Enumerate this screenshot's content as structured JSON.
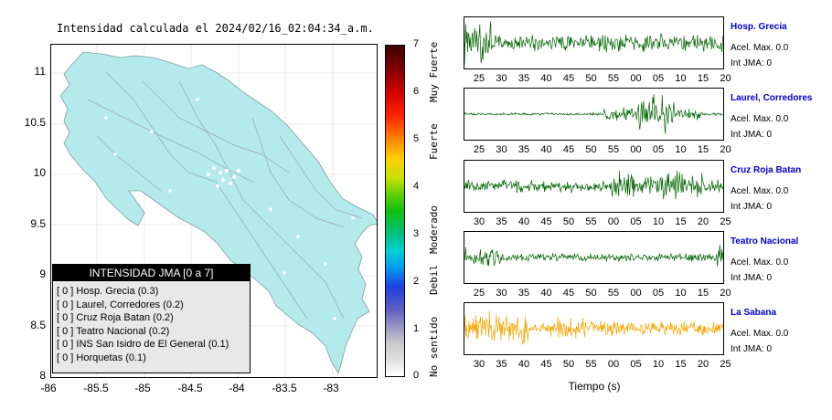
{
  "map": {
    "title": "Intensidad calculada el 2024/02/16_02:04:34_a.m.",
    "yticks": [
      "11",
      "10.5",
      "10",
      "9.5",
      "9",
      "8.5",
      "8"
    ],
    "xticks": [
      "-86",
      "-85.5",
      "-85",
      "-84.5",
      "-84",
      "-83.5",
      "-83"
    ],
    "land_color": "#b4eaec"
  },
  "legend": {
    "title": "INTENSIDAD JMA [0 a 7]",
    "items": [
      "[ 0 ]  Hosp. Grecia (0.3)",
      "[ 0 ]  Laurel, Corredores (0.2)",
      "[ 0 ]  Cruz Roja Batan (0.2)",
      "[ 0 ]  Teatro Nacional (0.2)",
      "[ 0 ]  INS San Isidro de El General (0.1)",
      "[ 0 ]  Horquetas (0.1)"
    ]
  },
  "colorbar": {
    "ticks": [
      "7",
      "6",
      "5",
      "4",
      "3",
      "2",
      "1",
      "0"
    ],
    "labels": [
      "Muy Fuerte",
      "Fuerte",
      "Moderado",
      "Debil",
      "No sentido"
    ]
  },
  "stations": [
    {
      "name": "Hosp. Grecia",
      "acel": "Acel. Max. 0.0",
      "int": "Int JMA: 0",
      "color": "#006400",
      "ticks": [
        "25",
        "30",
        "35",
        "40",
        "45",
        "50",
        "55",
        "00",
        "05",
        "10",
        "15",
        "20"
      ]
    },
    {
      "name": "Laurel, Corredores",
      "acel": "Acel. Max. 0.0",
      "int": "Int JMA: 0",
      "color": "#006400",
      "ticks": [
        "25",
        "30",
        "35",
        "40",
        "45",
        "50",
        "55",
        "00",
        "05",
        "10",
        "15",
        "20"
      ]
    },
    {
      "name": "Cruz Roja Batan",
      "acel": "Acel. Max. 0.0",
      "int": "Int JMA: 0",
      "color": "#006400",
      "ticks": [
        "30",
        "35",
        "40",
        "45",
        "50",
        "55",
        "00",
        "05",
        "10",
        "15",
        "20",
        "25"
      ]
    },
    {
      "name": "Teatro Nacional",
      "acel": "Acel. Max. 0.0",
      "int": "Int JMA: 0",
      "color": "#006400",
      "ticks": [
        "25",
        "30",
        "35",
        "40",
        "45",
        "50",
        "55",
        "00",
        "05",
        "10",
        "15",
        "20"
      ]
    },
    {
      "name": "La Sabana",
      "acel": "Acel. Max. 0.0",
      "int": "Int JMA: 0",
      "color": "#f5a500",
      "ticks": [
        "30",
        "35",
        "40",
        "45",
        "50",
        "55",
        "00",
        "05",
        "10",
        "15",
        "20",
        "25"
      ]
    }
  ],
  "xaxis_label": "Tiempo (s)"
}
